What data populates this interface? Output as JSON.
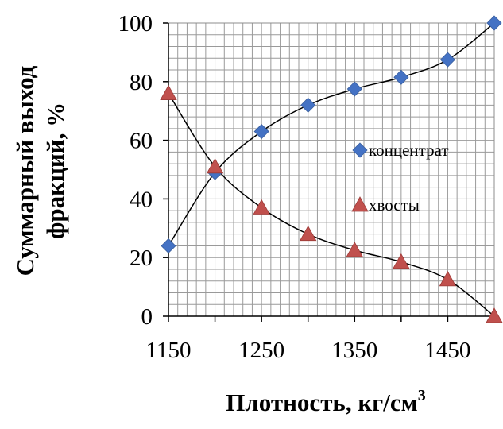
{
  "chart_data": {
    "type": "scatter",
    "x": [
      1150,
      1200,
      1250,
      1300,
      1350,
      1400,
      1450,
      1500
    ],
    "series": [
      {
        "name": "концентрат",
        "values": [
          24,
          49,
          63,
          72,
          77.5,
          81.5,
          87.5,
          100
        ],
        "color": "#4472C4",
        "marker": "diamond"
      },
      {
        "name": "хвосты",
        "values": [
          76,
          51,
          37,
          28,
          22.5,
          18.5,
          12.5,
          0
        ],
        "color": "#C0504D",
        "marker": "triangle"
      }
    ],
    "xticks": [
      "1150",
      "1250",
      "1350",
      "1450"
    ],
    "yticks": [
      "0",
      "20",
      "40",
      "60",
      "80",
      "100"
    ],
    "xlim": [
      1150,
      1500
    ],
    "ylim": [
      0,
      100
    ],
    "xlabel": "Плотность, кг/см",
    "xlabel_sup": "3",
    "ylabel_line1": "Суммарный выход",
    "ylabel_line2": "фракций, %",
    "grid": "on",
    "legend_position": "right",
    "trendline_color": "#000000"
  }
}
